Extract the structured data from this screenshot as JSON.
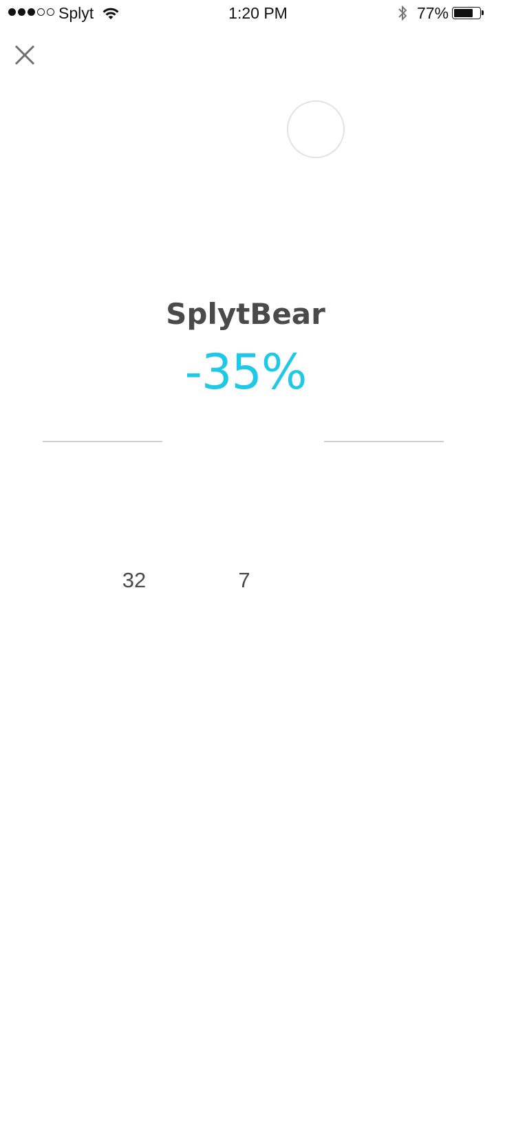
{
  "status_bar": {
    "carrier": "Splyt",
    "time": "1:20 PM",
    "battery_percent": "77%",
    "battery_level": 0.77,
    "signal_bars_filled": 3,
    "signal_bars_total": 5
  },
  "profile": {
    "name": "SplytBear",
    "percent": "-35%",
    "accent_color": "#1fc8e6"
  },
  "stats": {
    "left_value": "32",
    "right_value": "7"
  },
  "icons": {
    "close": "close-icon",
    "wifi": "wifi-icon",
    "bluetooth": "bluetooth-icon",
    "battery": "battery-icon"
  }
}
